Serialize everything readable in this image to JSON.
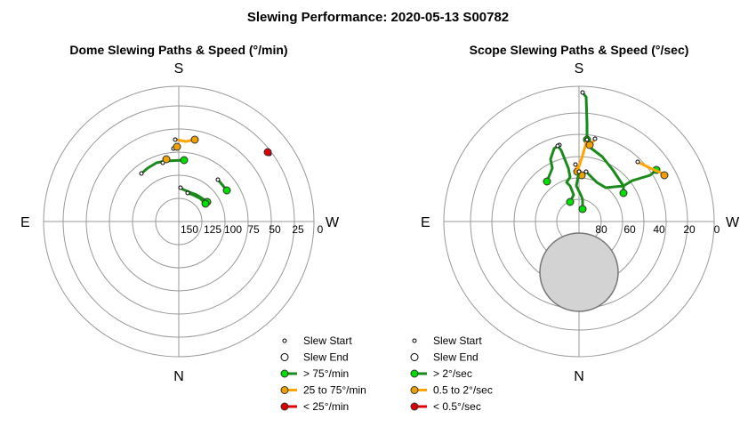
{
  "chart_data": {
    "type": "scatter",
    "title": "Slewing Performance: 2020-05-13 S00782",
    "panels": [
      {
        "id": "dome",
        "title": "Dome Slewing Paths & Speed (°/min)",
        "compass": {
          "top": "S",
          "left": "E",
          "right": "W",
          "bottom": "N"
        },
        "radial_tick_labels": [
          "150",
          "125",
          "100",
          "75",
          "50",
          "25",
          "0"
        ],
        "legend": [
          "Slew Start",
          "Slew End",
          "> 75°/min",
          "25 to 75°/min",
          "< 25°/min"
        ],
        "colors": {
          "fast": "#00dd00",
          "fast_line": "#1a8a1a",
          "medium": "#f0a000",
          "medium_line": "#ffa500",
          "slow": "#dd0000",
          "slow_line": "#dd0000"
        },
        "paths": [
          {
            "speed": "medium",
            "points": [
              [
                -4,
                92
              ],
              [
                -2,
                92
              ],
              [
                2,
                91
              ],
              [
                8,
                90
              ],
              [
                18,
                92
              ]
            ]
          },
          {
            "speed": "medium",
            "points": [
              [
                -6,
                82
              ],
              [
                -4,
                83
              ],
              [
                -2,
                84
              ]
            ]
          },
          {
            "speed": "fast",
            "points": [
              [
                -42,
                54
              ],
              [
                -35,
                60
              ],
              [
                -25,
                66
              ],
              [
                -15,
                68
              ],
              [
                6,
                69
              ]
            ]
          },
          {
            "speed": "medium",
            "points": [
              [
                -18,
                66
              ],
              [
                -16,
                68
              ],
              [
                -14,
                70
              ]
            ]
          },
          {
            "speed": "fast",
            "points": [
              [
                2,
                38
              ],
              [
                5,
                36
              ],
              [
                12,
                33
              ],
              [
                20,
                30
              ],
              [
                28,
                25
              ],
              [
                32,
                22
              ]
            ]
          },
          {
            "speed": "fast",
            "points": [
              [
                10,
                32
              ],
              [
                16,
                30
              ],
              [
                24,
                26
              ],
              [
                30,
                20
              ]
            ]
          },
          {
            "speed": "fast",
            "points": [
              [
                44,
                47
              ],
              [
                50,
                40
              ],
              [
                54,
                35
              ]
            ]
          },
          {
            "speed": "slow",
            "points": [
              [
                102,
                76
              ],
              [
                100,
                78
              ]
            ]
          }
        ]
      },
      {
        "id": "scope",
        "title": "Scope Slewing Paths & Speed (°/sec)",
        "compass": {
          "top": "S",
          "left": "E",
          "right": "W",
          "bottom": "N"
        },
        "radial_tick_labels": [
          "80",
          "60",
          "40",
          "20",
          "0"
        ],
        "legend": [
          "Slew Start",
          "Slew End",
          "> 2°/sec",
          "0.5 to 2°/sec",
          "< 0.5°/sec"
        ],
        "colors": {
          "fast": "#00dd00",
          "fast_line": "#1a8a1a",
          "medium": "#f0a000",
          "medium_line": "#ffa500",
          "slow": "#dd0000",
          "slow_line": "#dd0000",
          "exclusion": "#d3d3d3"
        },
        "exclusion_zone": {
          "x": 0,
          "y": -57,
          "r": 44
        },
        "paths": [
          {
            "speed": "fast",
            "points": [
              [
                4,
                145
              ],
              [
                8,
                140
              ],
              [
                9,
                110
              ],
              [
                9,
                92
              ]
            ]
          },
          {
            "speed": "medium",
            "points": [
              [
                9,
                92
              ],
              [
                4,
                74
              ],
              [
                0,
                62
              ],
              [
                -2,
                56
              ]
            ]
          },
          {
            "speed": "fast",
            "points": [
              [
                9,
                92
              ],
              [
                14,
                82
              ],
              [
                26,
                73
              ],
              [
                38,
                58
              ],
              [
                50,
                40
              ],
              [
                50,
                32
              ]
            ]
          },
          {
            "speed": "fast",
            "points": [
              [
                -22,
                86
              ],
              [
                -28,
                82
              ],
              [
                -32,
                70
              ],
              [
                -30,
                60
              ],
              [
                -36,
                45
              ]
            ]
          },
          {
            "speed": "fast",
            "points": [
              [
                -24,
                85
              ],
              [
                -20,
                80
              ],
              [
                -16,
                70
              ],
              [
                -12,
                60
              ],
              [
                -10,
                50
              ],
              [
                -14,
                44
              ],
              [
                -10,
                40
              ],
              [
                -6,
                30
              ],
              [
                -10,
                22
              ]
            ]
          },
          {
            "speed": "medium",
            "points": [
              [
                -4,
                64
              ],
              [
                0,
                58
              ],
              [
                3,
                52
              ]
            ]
          },
          {
            "speed": "fast",
            "points": [
              [
                0,
                56
              ],
              [
                -3,
                40
              ],
              [
                2,
                30
              ],
              [
                4,
                25
              ],
              [
                4,
                14
              ]
            ]
          },
          {
            "speed": "fast",
            "points": [
              [
                8,
                56
              ],
              [
                20,
                44
              ],
              [
                30,
                38
              ],
              [
                50,
                40
              ],
              [
                60,
                46
              ],
              [
                80,
                52
              ],
              [
                87,
                58
              ]
            ]
          },
          {
            "speed": "medium",
            "points": [
              [
                66,
                67
              ],
              [
                74,
                63
              ],
              [
                82,
                59
              ],
              [
                92,
                55
              ],
              [
                96,
                52
              ]
            ]
          },
          {
            "speed": "medium",
            "points": [
              [
                18,
                93
              ],
              [
                16,
                90
              ],
              [
                12,
                86
              ]
            ]
          }
        ]
      }
    ]
  }
}
